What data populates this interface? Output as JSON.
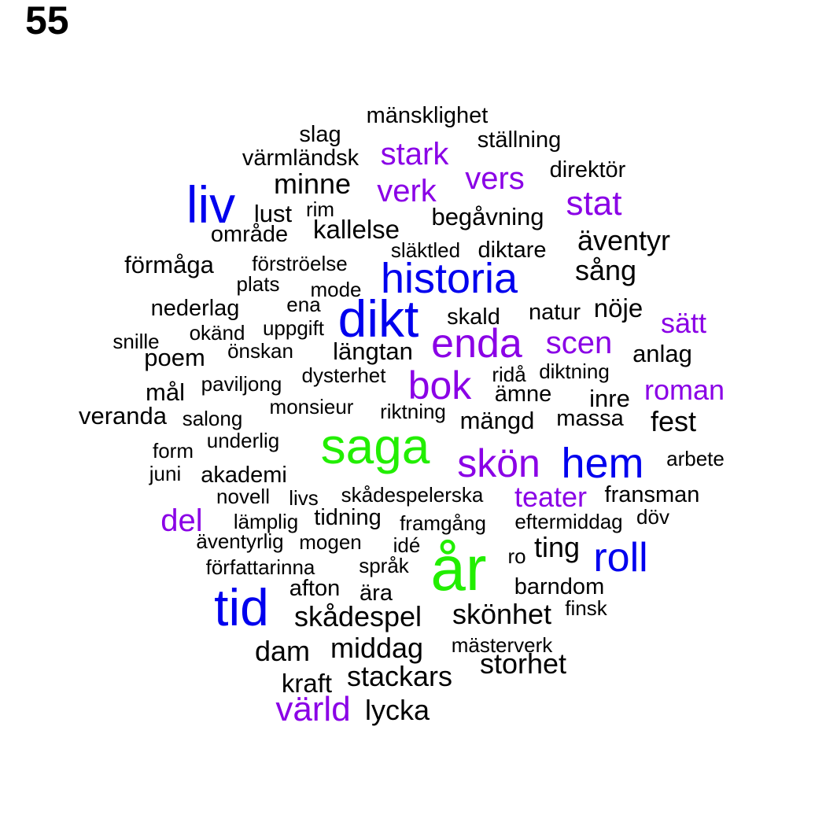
{
  "page_number": "55",
  "palette": {
    "black": "#000000",
    "purple": "#8a00e6",
    "blue": "#0000ee",
    "green": "#22ee00"
  },
  "words": [
    {
      "text": "mänsklighet",
      "color": "black"
    },
    {
      "text": "slag",
      "color": "black"
    },
    {
      "text": "ställning",
      "color": "black"
    },
    {
      "text": "värmländsk",
      "color": "black"
    },
    {
      "text": "stark",
      "color": "purple"
    },
    {
      "text": "direktör",
      "color": "black"
    },
    {
      "text": "vers",
      "color": "purple"
    },
    {
      "text": "liv",
      "color": "blue"
    },
    {
      "text": "minne",
      "color": "black"
    },
    {
      "text": "verk",
      "color": "purple"
    },
    {
      "text": "stat",
      "color": "purple"
    },
    {
      "text": "lust",
      "color": "black"
    },
    {
      "text": "rim",
      "color": "black"
    },
    {
      "text": "begåvning",
      "color": "black"
    },
    {
      "text": "område",
      "color": "black"
    },
    {
      "text": "kallelse",
      "color": "black"
    },
    {
      "text": "äventyr",
      "color": "black"
    },
    {
      "text": "släktled",
      "color": "black"
    },
    {
      "text": "diktare",
      "color": "black"
    },
    {
      "text": "förmåga",
      "color": "black"
    },
    {
      "text": "förströelse",
      "color": "black"
    },
    {
      "text": "sång",
      "color": "black"
    },
    {
      "text": "historia",
      "color": "blue"
    },
    {
      "text": "plats",
      "color": "black"
    },
    {
      "text": "mode",
      "color": "black"
    },
    {
      "text": "nederlag",
      "color": "black"
    },
    {
      "text": "ena",
      "color": "black"
    },
    {
      "text": "nöje",
      "color": "black"
    },
    {
      "text": "natur",
      "color": "black"
    },
    {
      "text": "skald",
      "color": "black"
    },
    {
      "text": "sätt",
      "color": "purple"
    },
    {
      "text": "okänd",
      "color": "black"
    },
    {
      "text": "uppgift",
      "color": "black"
    },
    {
      "text": "dikt",
      "color": "blue"
    },
    {
      "text": "snille",
      "color": "black"
    },
    {
      "text": "enda",
      "color": "purple"
    },
    {
      "text": "scen",
      "color": "purple"
    },
    {
      "text": "önskan",
      "color": "black"
    },
    {
      "text": "längtan",
      "color": "black"
    },
    {
      "text": "anlag",
      "color": "black"
    },
    {
      "text": "poem",
      "color": "black"
    },
    {
      "text": "ridå",
      "color": "black"
    },
    {
      "text": "diktning",
      "color": "black"
    },
    {
      "text": "dysterhet",
      "color": "black"
    },
    {
      "text": "paviljong",
      "color": "black"
    },
    {
      "text": "bok",
      "color": "purple"
    },
    {
      "text": "roman",
      "color": "purple"
    },
    {
      "text": "mål",
      "color": "black"
    },
    {
      "text": "ämne",
      "color": "black"
    },
    {
      "text": "inre",
      "color": "black"
    },
    {
      "text": "monsieur",
      "color": "black"
    },
    {
      "text": "riktning",
      "color": "black"
    },
    {
      "text": "veranda",
      "color": "black"
    },
    {
      "text": "salong",
      "color": "black"
    },
    {
      "text": "mängd",
      "color": "black"
    },
    {
      "text": "massa",
      "color": "black"
    },
    {
      "text": "fest",
      "color": "black"
    },
    {
      "text": "underlig",
      "color": "black"
    },
    {
      "text": "saga",
      "color": "green"
    },
    {
      "text": "form",
      "color": "black"
    },
    {
      "text": "skön",
      "color": "purple"
    },
    {
      "text": "hem",
      "color": "blue"
    },
    {
      "text": "arbete",
      "color": "black"
    },
    {
      "text": "juni",
      "color": "black"
    },
    {
      "text": "akademi",
      "color": "black"
    },
    {
      "text": "novell",
      "color": "black"
    },
    {
      "text": "livs",
      "color": "black"
    },
    {
      "text": "skådespelerska",
      "color": "black"
    },
    {
      "text": "teater",
      "color": "purple"
    },
    {
      "text": "fransman",
      "color": "black"
    },
    {
      "text": "del",
      "color": "purple"
    },
    {
      "text": "lämplig",
      "color": "black"
    },
    {
      "text": "tidning",
      "color": "black"
    },
    {
      "text": "framgång",
      "color": "black"
    },
    {
      "text": "eftermiddag",
      "color": "black"
    },
    {
      "text": "döv",
      "color": "black"
    },
    {
      "text": "äventyrlig",
      "color": "black"
    },
    {
      "text": "mogen",
      "color": "black"
    },
    {
      "text": "idé",
      "color": "black"
    },
    {
      "text": "ting",
      "color": "black"
    },
    {
      "text": "roll",
      "color": "blue"
    },
    {
      "text": "ro",
      "color": "black"
    },
    {
      "text": "författarinna",
      "color": "black"
    },
    {
      "text": "språk",
      "color": "black"
    },
    {
      "text": "år",
      "color": "green"
    },
    {
      "text": "afton",
      "color": "black"
    },
    {
      "text": "barndom",
      "color": "black"
    },
    {
      "text": "tid",
      "color": "blue"
    },
    {
      "text": "ära",
      "color": "black"
    },
    {
      "text": "finsk",
      "color": "black"
    },
    {
      "text": "skådespel",
      "color": "black"
    },
    {
      "text": "skönhet",
      "color": "black"
    },
    {
      "text": "mästerverk",
      "color": "black"
    },
    {
      "text": "dam",
      "color": "black"
    },
    {
      "text": "middag",
      "color": "black"
    },
    {
      "text": "storhet",
      "color": "black"
    },
    {
      "text": "stackars",
      "color": "black"
    },
    {
      "text": "kraft",
      "color": "black"
    },
    {
      "text": "värld",
      "color": "purple"
    },
    {
      "text": "lycka",
      "color": "black"
    }
  ]
}
